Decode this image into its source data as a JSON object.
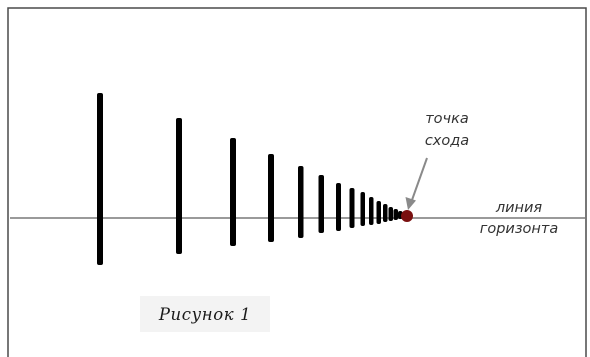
{
  "labels": {
    "vanishing_point_line1": "точка",
    "vanishing_point_line2": "схода",
    "horizon_line1": "линия",
    "horizon_line2": "горизонта",
    "caption": "Рисунок 1"
  },
  "colors": {
    "frame": "#4a4a4a",
    "horizon": "#9a9a9a",
    "bars": "#000000",
    "vanishing_point": "#7a1010",
    "arrow": "#8a8a8a",
    "caption_background": "#f3f3f3"
  }
}
